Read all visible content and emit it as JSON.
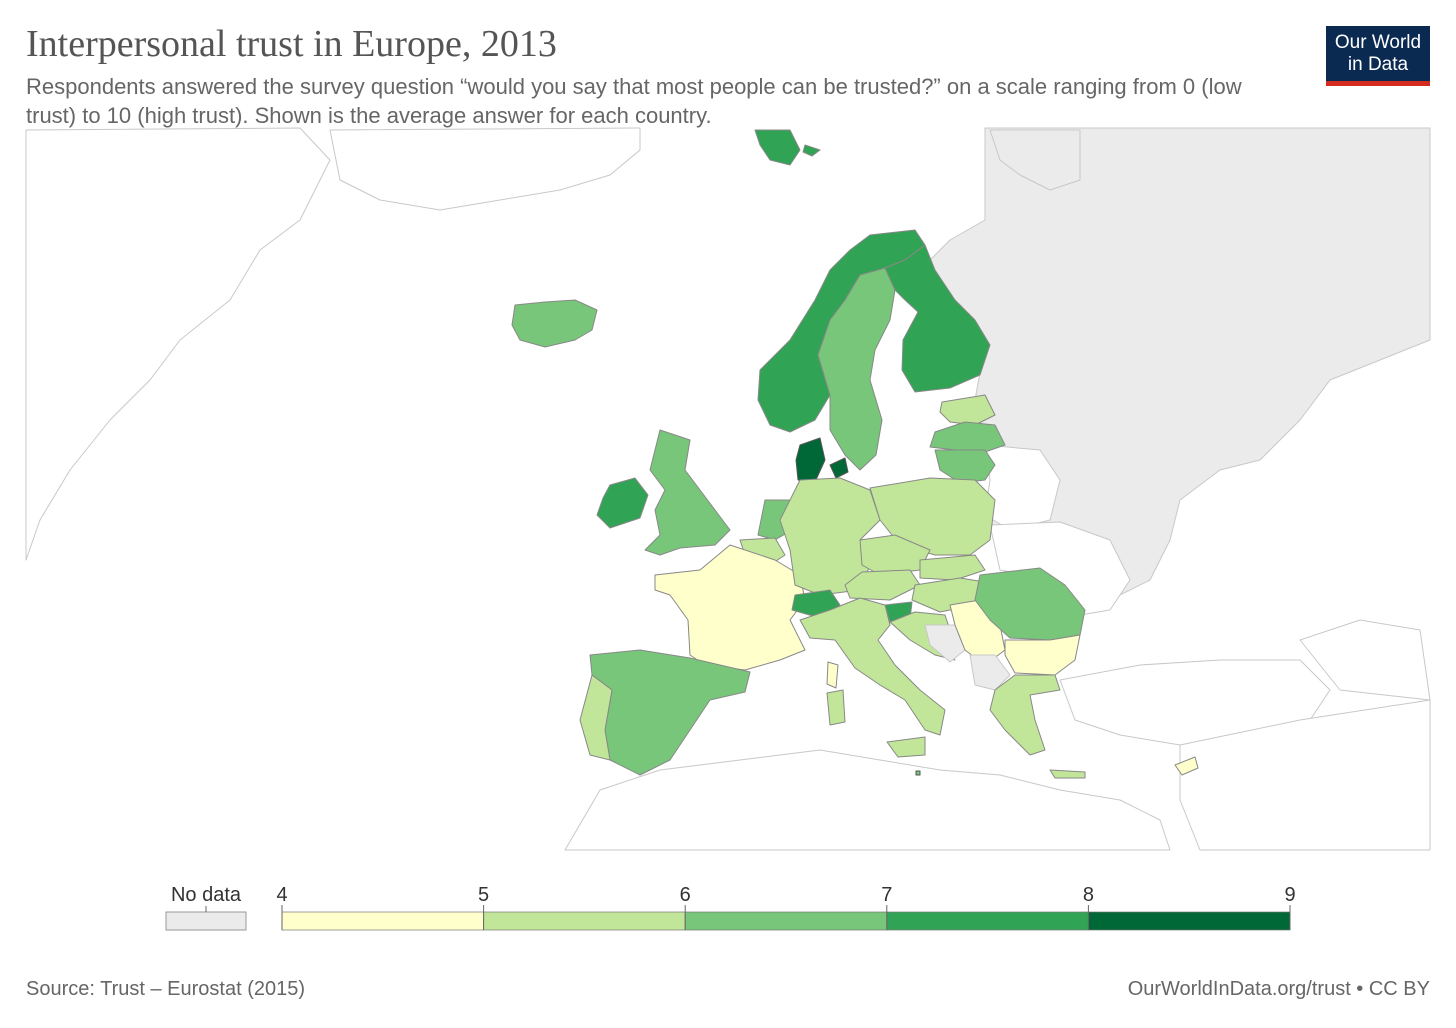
{
  "header": {
    "title": "Interpersonal trust in Europe, 2013",
    "subtitle": "Respondents answered the survey question “would you say that most people can be trusted?” on a scale ranging from 0 (low trust) to 10 (high trust). Shown is the average answer for each country."
  },
  "logo": {
    "line1": "Our World",
    "line2": "in Data"
  },
  "legend": {
    "no_data_label": "No data",
    "no_data_color": "#ebebeb",
    "ticks": [
      "4",
      "5",
      "6",
      "7",
      "8",
      "9"
    ],
    "bins": [
      {
        "from": 4,
        "to": 5,
        "color": "#ffffcc"
      },
      {
        "from": 5,
        "to": 6,
        "color": "#c2e699"
      },
      {
        "from": 6,
        "to": 7,
        "color": "#78c679"
      },
      {
        "from": 7,
        "to": 8,
        "color": "#31a354"
      },
      {
        "from": 8,
        "to": 9,
        "color": "#006837"
      }
    ]
  },
  "colors": {
    "no_data": "#ebebeb",
    "outside": "#ffffff",
    "border": "#c8c8c8"
  },
  "footer": {
    "source": "Source: Trust – Eurostat (2015)",
    "credit": "OurWorldInData.org/trust • CC BY"
  }
}
